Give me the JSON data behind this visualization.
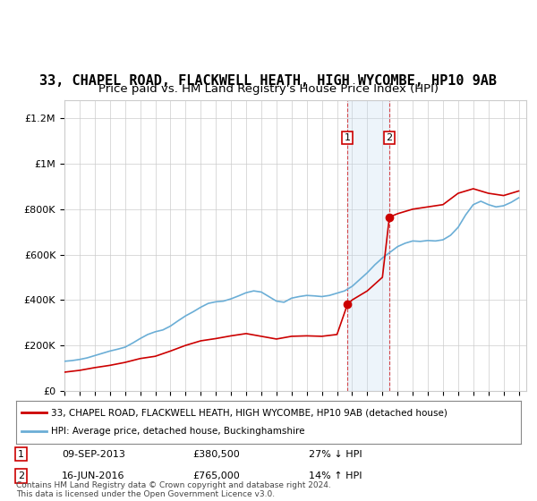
{
  "title": "33, CHAPEL ROAD, FLACKWELL HEATH, HIGH WYCOMBE, HP10 9AB",
  "subtitle": "Price paid vs. HM Land Registry's House Price Index (HPI)",
  "title_fontsize": 11,
  "subtitle_fontsize": 9.5,
  "ylabel_ticks": [
    "£0",
    "£200K",
    "£400K",
    "£600K",
    "£800K",
    "£1M",
    "£1.2M"
  ],
  "ytick_values": [
    0,
    200000,
    400000,
    600000,
    800000,
    1000000,
    1200000
  ],
  "ylim": [
    0,
    1280000
  ],
  "xlim_start": 1995.0,
  "xlim_end": 2025.5,
  "sale1_date": 2013.69,
  "sale1_price": 380500,
  "sale1_label": "1",
  "sale1_display": "09-SEP-2013",
  "sale1_amount": "£380,500",
  "sale1_hpi": "27% ↓ HPI",
  "sale2_date": 2016.46,
  "sale2_price": 765000,
  "sale2_label": "2",
  "sale2_display": "16-JUN-2016",
  "sale2_amount": "£765,000",
  "sale2_hpi": "14% ↑ HPI",
  "hpi_color": "#6baed6",
  "price_color": "#cc0000",
  "shade_color": "#c6dbef",
  "legend_line1": "33, CHAPEL ROAD, FLACKWELL HEATH, HIGH WYCOMBE, HP10 9AB (detached house)",
  "legend_line2": "HPI: Average price, detached house, Buckinghamshire",
  "footnote": "Contains HM Land Registry data © Crown copyright and database right 2024.\nThis data is licensed under the Open Government Licence v3.0.",
  "background_color": "#ffffff",
  "grid_color": "#cccccc"
}
